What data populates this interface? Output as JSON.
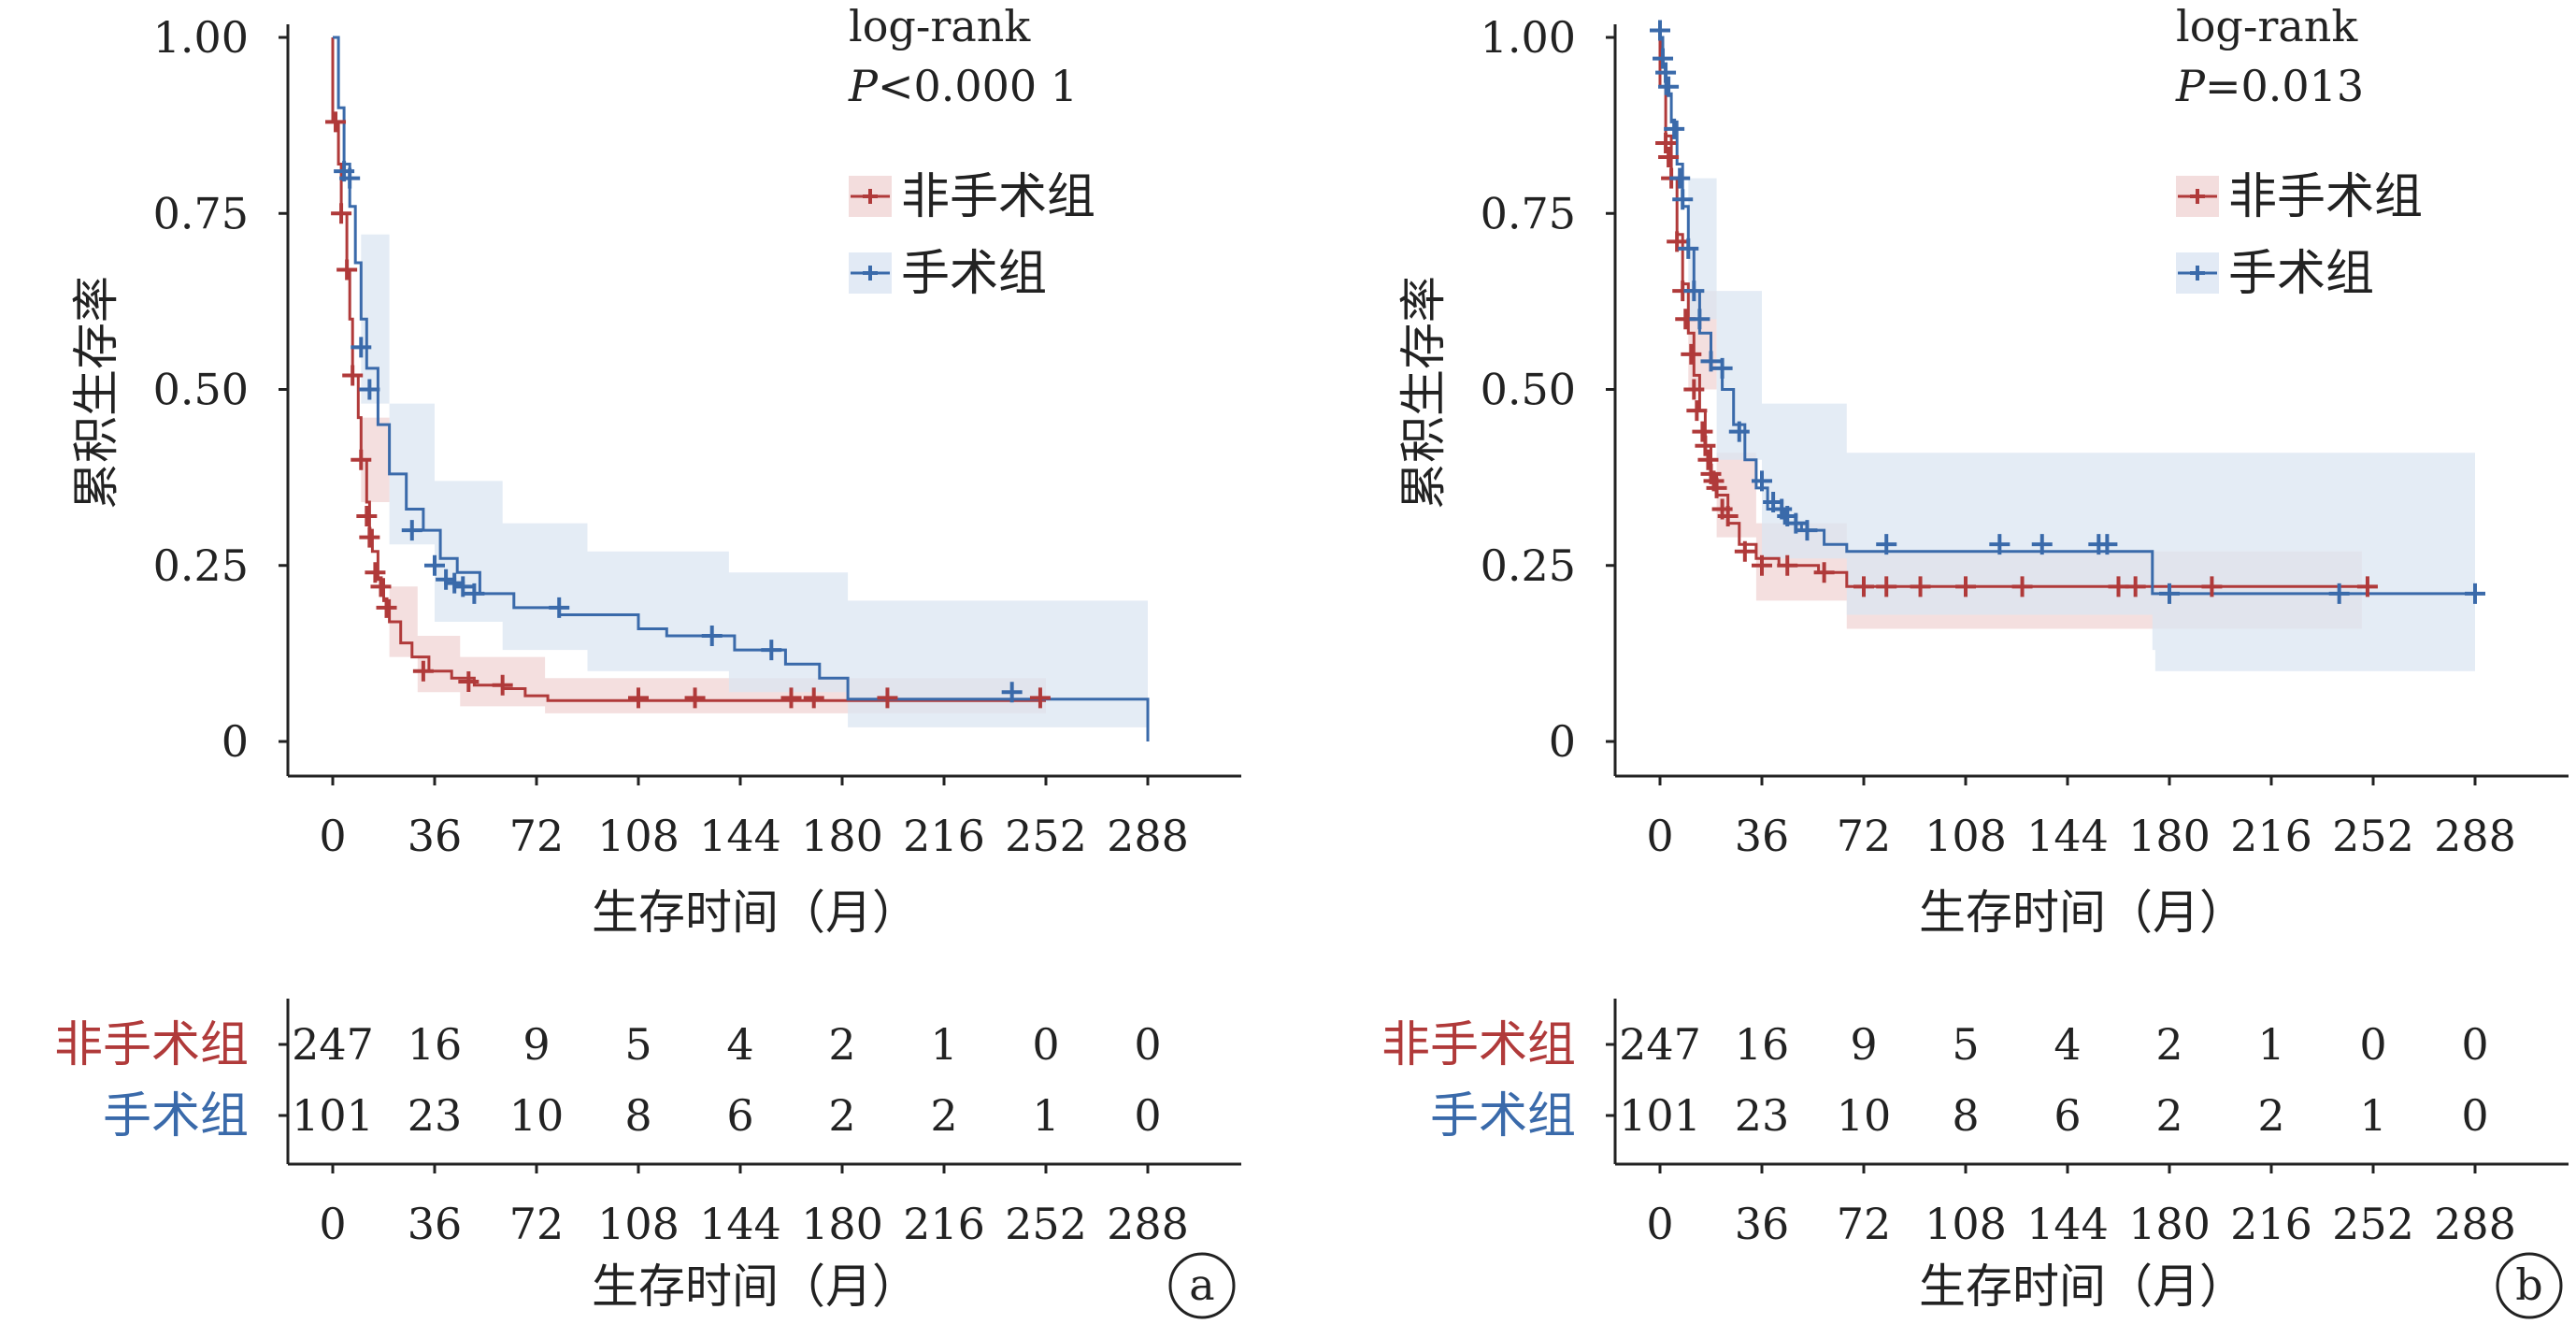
{
  "chart_data": [
    {
      "type": "line",
      "subtype": "kaplan-meier",
      "panel_label": "a",
      "xlabel": "生存时间（月）",
      "ylabel": "累积生存率",
      "xlim": [
        0,
        288
      ],
      "ylim": [
        0,
        1
      ],
      "x_ticks": [
        "0",
        "36",
        "72",
        "108",
        "144",
        "180",
        "216",
        "252",
        "288"
      ],
      "y_ticks": [
        "0",
        "0.25",
        "0.50",
        "0.75",
        "1.00"
      ],
      "annotation_title": "log-rank",
      "annotation_p_symbol": "P",
      "annotation_p_value": "<0.000 1",
      "legend": [
        "非手术组",
        "手术组"
      ],
      "legend_position": "top-right",
      "series": [
        {
          "name": "非手术组",
          "color": "#b03a3a",
          "band_color": "#f0d4d4",
          "steps": [
            [
              0,
              1
            ],
            [
              0,
              0.88
            ],
            [
              2,
              0.82
            ],
            [
              3,
              0.75
            ],
            [
              5,
              0.67
            ],
            [
              6,
              0.6
            ],
            [
              7,
              0.52
            ],
            [
              9,
              0.46
            ],
            [
              10,
              0.4
            ],
            [
              12,
              0.34
            ],
            [
              13,
              0.3
            ],
            [
              14,
              0.27
            ],
            [
              16,
              0.23
            ],
            [
              18,
              0.2
            ],
            [
              20,
              0.17
            ],
            [
              24,
              0.14
            ],
            [
              28,
              0.12
            ],
            [
              34,
              0.1
            ],
            [
              42,
              0.09
            ],
            [
              50,
              0.08
            ],
            [
              60,
              0.075
            ],
            [
              68,
              0.065
            ],
            [
              76,
              0.058
            ],
            [
              252,
              0.058
            ]
          ],
          "censors": [
            [
              1,
              0.88
            ],
            [
              3,
              0.75
            ],
            [
              5,
              0.67
            ],
            [
              7,
              0.52
            ],
            [
              10,
              0.4
            ],
            [
              12,
              0.32
            ],
            [
              13,
              0.29
            ],
            [
              15,
              0.24
            ],
            [
              17,
              0.22
            ],
            [
              19,
              0.19
            ],
            [
              32,
              0.1
            ],
            [
              48,
              0.085
            ],
            [
              60,
              0.08
            ],
            [
              108,
              0.062
            ],
            [
              128,
              0.062
            ],
            [
              162,
              0.062
            ],
            [
              170,
              0.062
            ],
            [
              196,
              0.062
            ],
            [
              250,
              0.062
            ]
          ],
          "band": [
            [
              0,
              1,
              1
            ],
            [
              10,
              0.34,
              0.46
            ],
            [
              20,
              0.12,
              0.22
            ],
            [
              30,
              0.07,
              0.15
            ],
            [
              45,
              0.05,
              0.12
            ],
            [
              75,
              0.04,
              0.09
            ],
            [
              252,
              0.04,
              0.08
            ]
          ]
        },
        {
          "name": "手术组",
          "color": "#3a6aaa",
          "band_color": "#dbe5f2",
          "steps": [
            [
              0,
              1
            ],
            [
              2,
              0.9
            ],
            [
              4,
              0.82
            ],
            [
              6,
              0.76
            ],
            [
              8,
              0.68
            ],
            [
              10,
              0.6
            ],
            [
              12,
              0.53
            ],
            [
              16,
              0.45
            ],
            [
              20,
              0.38
            ],
            [
              26,
              0.33
            ],
            [
              32,
              0.3
            ],
            [
              38,
              0.26
            ],
            [
              44,
              0.24
            ],
            [
              52,
              0.21
            ],
            [
              64,
              0.19
            ],
            [
              80,
              0.18
            ],
            [
              108,
              0.16
            ],
            [
              118,
              0.15
            ],
            [
              142,
              0.13
            ],
            [
              160,
              0.11
            ],
            [
              172,
              0.09
            ],
            [
              178,
              0.09
            ],
            [
              182,
              0.06
            ],
            [
              288,
              0.06
            ],
            [
              288,
              0.0
            ]
          ],
          "censors": [
            [
              4,
              0.81
            ],
            [
              6,
              0.8
            ],
            [
              10,
              0.56
            ],
            [
              13,
              0.5
            ],
            [
              28,
              0.3
            ],
            [
              36,
              0.25
            ],
            [
              40,
              0.23
            ],
            [
              43,
              0.225
            ],
            [
              46,
              0.22
            ],
            [
              50,
              0.21
            ],
            [
              80,
              0.19
            ],
            [
              134,
              0.15
            ],
            [
              155,
              0.13
            ],
            [
              240,
              0.07
            ]
          ],
          "band": [
            [
              0,
              1,
              1
            ],
            [
              10,
              0.48,
              0.72
            ],
            [
              20,
              0.28,
              0.48
            ],
            [
              36,
              0.17,
              0.37
            ],
            [
              60,
              0.13,
              0.31
            ],
            [
              90,
              0.1,
              0.27
            ],
            [
              140,
              0.07,
              0.24
            ],
            [
              182,
              0.02,
              0.2
            ],
            [
              288,
              0.02,
              0.2
            ]
          ]
        }
      ],
      "risk_table": {
        "xlabel": "生存时间（月）",
        "times": [
          "0",
          "36",
          "72",
          "108",
          "144",
          "180",
          "216",
          "252",
          "288"
        ],
        "rows": [
          {
            "name": "非手术组",
            "color": "#b03a3a",
            "values": [
              "247",
              "16",
              "9",
              "5",
              "4",
              "2",
              "1",
              "0",
              "0"
            ]
          },
          {
            "name": "手术组",
            "color": "#3a6aaa",
            "values": [
              "101",
              "23",
              "10",
              "8",
              "6",
              "2",
              "2",
              "1",
              "0"
            ]
          }
        ]
      }
    },
    {
      "type": "line",
      "subtype": "kaplan-meier",
      "panel_label": "b",
      "xlabel": "生存时间（月）",
      "ylabel": "累积生存率",
      "xlim": [
        0,
        288
      ],
      "ylim": [
        0,
        1
      ],
      "x_ticks": [
        "0",
        "36",
        "72",
        "108",
        "144",
        "180",
        "216",
        "252",
        "288"
      ],
      "y_ticks": [
        "0",
        "0.25",
        "0.50",
        "0.75",
        "1.00"
      ],
      "annotation_title": "log-rank",
      "annotation_p_symbol": "P",
      "annotation_p_value": "=0.013",
      "legend": [
        "非手术组",
        "手术组"
      ],
      "legend_position": "top-right",
      "series": [
        {
          "name": "非手术组",
          "color": "#b03a3a",
          "band_color": "#f0d4d4",
          "steps": [
            [
              0,
              1
            ],
            [
              0,
              0.93
            ],
            [
              2,
              0.86
            ],
            [
              4,
              0.8
            ],
            [
              6,
              0.72
            ],
            [
              8,
              0.65
            ],
            [
              10,
              0.58
            ],
            [
              12,
              0.52
            ],
            [
              14,
              0.47
            ],
            [
              16,
              0.42
            ],
            [
              18,
              0.38
            ],
            [
              20,
              0.35
            ],
            [
              24,
              0.31
            ],
            [
              28,
              0.28
            ],
            [
              34,
              0.26
            ],
            [
              42,
              0.25
            ],
            [
              56,
              0.24
            ],
            [
              66,
              0.22
            ],
            [
              248,
              0.22
            ]
          ],
          "censors": [
            [
              2,
              0.85
            ],
            [
              3,
              0.83
            ],
            [
              4,
              0.8
            ],
            [
              6,
              0.71
            ],
            [
              8,
              0.64
            ],
            [
              9,
              0.6
            ],
            [
              11,
              0.55
            ],
            [
              12,
              0.5
            ],
            [
              13,
              0.47
            ],
            [
              15,
              0.44
            ],
            [
              16,
              0.42
            ],
            [
              17,
              0.4
            ],
            [
              18,
              0.38
            ],
            [
              19,
              0.37
            ],
            [
              20,
              0.36
            ],
            [
              22,
              0.33
            ],
            [
              24,
              0.32
            ],
            [
              30,
              0.27
            ],
            [
              36,
              0.25
            ],
            [
              45,
              0.25
            ],
            [
              58,
              0.24
            ],
            [
              72,
              0.22
            ],
            [
              80,
              0.22
            ],
            [
              92,
              0.22
            ],
            [
              108,
              0.22
            ],
            [
              128,
              0.22
            ],
            [
              162,
              0.22
            ],
            [
              168,
              0.22
            ],
            [
              195,
              0.22
            ],
            [
              250,
              0.22
            ]
          ],
          "band": [
            [
              0,
              1,
              1
            ],
            [
              10,
              0.5,
              0.64
            ],
            [
              20,
              0.29,
              0.41
            ],
            [
              34,
              0.2,
              0.31
            ],
            [
              66,
              0.16,
              0.27
            ],
            [
              248,
              0.15,
              0.28
            ]
          ]
        },
        {
          "name": "手术组",
          "color": "#3a6aaa",
          "band_color": "#dbe5f2",
          "steps": [
            [
              0,
              1
            ],
            [
              1,
              0.96
            ],
            [
              2,
              0.92
            ],
            [
              4,
              0.88
            ],
            [
              6,
              0.82
            ],
            [
              8,
              0.76
            ],
            [
              10,
              0.7
            ],
            [
              12,
              0.64
            ],
            [
              14,
              0.58
            ],
            [
              18,
              0.54
            ],
            [
              22,
              0.5
            ],
            [
              26,
              0.45
            ],
            [
              30,
              0.4
            ],
            [
              34,
              0.36
            ],
            [
              38,
              0.33
            ],
            [
              44,
              0.31
            ],
            [
              50,
              0.3
            ],
            [
              58,
              0.28
            ],
            [
              66,
              0.27
            ],
            [
              174,
              0.27
            ],
            [
              174,
              0.21
            ],
            [
              288,
              0.21
            ]
          ],
          "censors": [
            [
              0,
              1.01
            ],
            [
              1,
              0.97
            ],
            [
              2,
              0.95
            ],
            [
              3,
              0.93
            ],
            [
              5,
              0.87
            ],
            [
              7,
              0.8
            ],
            [
              8,
              0.77
            ],
            [
              10,
              0.7
            ],
            [
              12,
              0.64
            ],
            [
              14,
              0.6
            ],
            [
              18,
              0.54
            ],
            [
              22,
              0.53
            ],
            [
              28,
              0.44
            ],
            [
              36,
              0.37
            ],
            [
              40,
              0.34
            ],
            [
              43,
              0.33
            ],
            [
              45,
              0.32
            ],
            [
              48,
              0.31
            ],
            [
              52,
              0.3
            ],
            [
              80,
              0.28
            ],
            [
              120,
              0.28
            ],
            [
              135,
              0.28
            ],
            [
              155,
              0.28
            ],
            [
              158,
              0.28
            ],
            [
              180,
              0.21
            ],
            [
              240,
              0.21
            ],
            [
              288,
              0.21
            ]
          ],
          "band": [
            [
              0,
              1,
              1
            ],
            [
              10,
              0.6,
              0.8
            ],
            [
              20,
              0.4,
              0.64
            ],
            [
              36,
              0.26,
              0.48
            ],
            [
              66,
              0.18,
              0.41
            ],
            [
              174,
              0.13,
              0.41
            ],
            [
              175,
              0.1,
              0.41
            ],
            [
              288,
              0.1,
              0.41
            ]
          ]
        }
      ],
      "risk_table": {
        "xlabel": "生存时间（月）",
        "times": [
          "0",
          "36",
          "72",
          "108",
          "144",
          "180",
          "216",
          "252",
          "288"
        ],
        "rows": [
          {
            "name": "非手术组",
            "color": "#b03a3a",
            "values": [
              "247",
              "16",
              "9",
              "5",
              "4",
              "2",
              "1",
              "0",
              "0"
            ]
          },
          {
            "name": "手术组",
            "color": "#3a6aaa",
            "values": [
              "101",
              "23",
              "10",
              "8",
              "6",
              "2",
              "2",
              "1",
              "0"
            ]
          }
        ]
      }
    }
  ]
}
